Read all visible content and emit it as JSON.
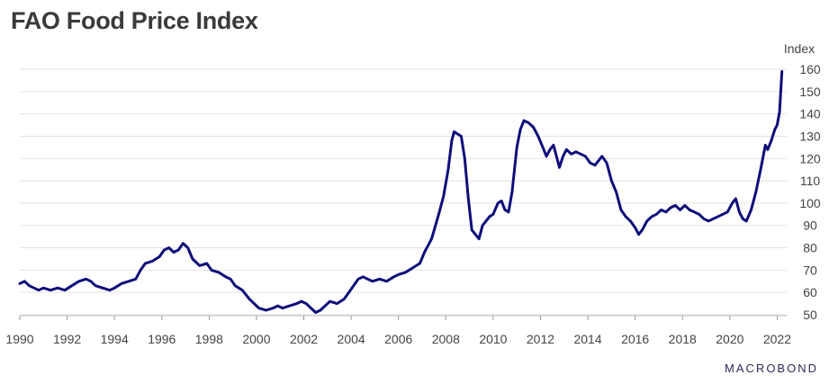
{
  "chart_data": {
    "type": "line",
    "title": "FAO Food Price Index",
    "ylabel": "Index",
    "xlabel": "",
    "xlim": [
      1990,
      2022.25
    ],
    "ylim": [
      50,
      160
    ],
    "x_ticks": [
      "1990",
      "1992",
      "1994",
      "1996",
      "1998",
      "2000",
      "2002",
      "2004",
      "2006",
      "2008",
      "2010",
      "2012",
      "2014",
      "2016",
      "2018",
      "2020",
      "2022"
    ],
    "y_ticks": [
      50,
      60,
      70,
      80,
      90,
      100,
      110,
      120,
      130,
      140,
      150,
      160
    ],
    "grid": true,
    "line_color": "#0d0d7a",
    "series": [
      {
        "values": [
          [
            1990.0,
            64
          ],
          [
            1990.2,
            65
          ],
          [
            1990.4,
            63
          ],
          [
            1990.6,
            62
          ],
          [
            1990.8,
            61
          ],
          [
            1991.0,
            62
          ],
          [
            1991.3,
            61
          ],
          [
            1991.6,
            62
          ],
          [
            1991.9,
            61
          ],
          [
            1992.2,
            63
          ],
          [
            1992.5,
            65
          ],
          [
            1992.8,
            66
          ],
          [
            1993.0,
            65
          ],
          [
            1993.2,
            63
          ],
          [
            1993.5,
            62
          ],
          [
            1993.8,
            61
          ],
          [
            1994.0,
            62
          ],
          [
            1994.3,
            64
          ],
          [
            1994.6,
            65
          ],
          [
            1994.9,
            66
          ],
          [
            1995.1,
            70
          ],
          [
            1995.3,
            73
          ],
          [
            1995.6,
            74
          ],
          [
            1995.9,
            76
          ],
          [
            1996.1,
            79
          ],
          [
            1996.3,
            80
          ],
          [
            1996.5,
            78
          ],
          [
            1996.7,
            79
          ],
          [
            1996.9,
            82
          ],
          [
            1997.1,
            80
          ],
          [
            1997.3,
            75
          ],
          [
            1997.6,
            72
          ],
          [
            1997.9,
            73
          ],
          [
            1998.1,
            70
          ],
          [
            1998.4,
            69
          ],
          [
            1998.7,
            67
          ],
          [
            1998.9,
            66
          ],
          [
            1999.1,
            63
          ],
          [
            1999.4,
            61
          ],
          [
            1999.7,
            57
          ],
          [
            1999.9,
            55
          ],
          [
            2000.1,
            53
          ],
          [
            2000.4,
            52
          ],
          [
            2000.7,
            53
          ],
          [
            2000.9,
            54
          ],
          [
            2001.1,
            53
          ],
          [
            2001.4,
            54
          ],
          [
            2001.7,
            55
          ],
          [
            2001.9,
            56
          ],
          [
            2002.1,
            55
          ],
          [
            2002.3,
            53
          ],
          [
            2002.5,
            51
          ],
          [
            2002.7,
            52
          ],
          [
            2002.9,
            54
          ],
          [
            2003.1,
            56
          ],
          [
            2003.4,
            55
          ],
          [
            2003.7,
            57
          ],
          [
            2003.9,
            60
          ],
          [
            2004.1,
            63
          ],
          [
            2004.3,
            66
          ],
          [
            2004.5,
            67
          ],
          [
            2004.7,
            66
          ],
          [
            2004.9,
            65
          ],
          [
            2005.2,
            66
          ],
          [
            2005.5,
            65
          ],
          [
            2005.8,
            67
          ],
          [
            2006.0,
            68
          ],
          [
            2006.3,
            69
          ],
          [
            2006.6,
            71
          ],
          [
            2006.9,
            73
          ],
          [
            2007.1,
            78
          ],
          [
            2007.4,
            84
          ],
          [
            2007.7,
            95
          ],
          [
            2007.9,
            103
          ],
          [
            2008.1,
            115
          ],
          [
            2008.25,
            128
          ],
          [
            2008.35,
            132
          ],
          [
            2008.5,
            131
          ],
          [
            2008.65,
            130
          ],
          [
            2008.8,
            120
          ],
          [
            2008.95,
            102
          ],
          [
            2009.1,
            88
          ],
          [
            2009.25,
            86
          ],
          [
            2009.4,
            84
          ],
          [
            2009.55,
            90
          ],
          [
            2009.7,
            92
          ],
          [
            2009.85,
            94
          ],
          [
            2010.0,
            95
          ],
          [
            2010.2,
            100
          ],
          [
            2010.35,
            101
          ],
          [
            2010.5,
            97
          ],
          [
            2010.65,
            96
          ],
          [
            2010.8,
            105
          ],
          [
            2011.0,
            125
          ],
          [
            2011.15,
            133
          ],
          [
            2011.3,
            137
          ],
          [
            2011.5,
            136
          ],
          [
            2011.7,
            134
          ],
          [
            2011.9,
            130
          ],
          [
            2012.1,
            125
          ],
          [
            2012.25,
            121
          ],
          [
            2012.4,
            124
          ],
          [
            2012.55,
            126
          ],
          [
            2012.7,
            120
          ],
          [
            2012.8,
            116
          ],
          [
            2012.95,
            121
          ],
          [
            2013.1,
            124
          ],
          [
            2013.3,
            122
          ],
          [
            2013.5,
            123
          ],
          [
            2013.7,
            122
          ],
          [
            2013.9,
            121
          ],
          [
            2014.1,
            118
          ],
          [
            2014.3,
            117
          ],
          [
            2014.45,
            119
          ],
          [
            2014.6,
            121
          ],
          [
            2014.8,
            118
          ],
          [
            2015.0,
            110
          ],
          [
            2015.2,
            105
          ],
          [
            2015.4,
            97
          ],
          [
            2015.6,
            94
          ],
          [
            2015.8,
            92
          ],
          [
            2016.0,
            89
          ],
          [
            2016.15,
            86
          ],
          [
            2016.3,
            88
          ],
          [
            2016.5,
            92
          ],
          [
            2016.7,
            94
          ],
          [
            2016.9,
            95
          ],
          [
            2017.1,
            97
          ],
          [
            2017.3,
            96
          ],
          [
            2017.5,
            98
          ],
          [
            2017.7,
            99
          ],
          [
            2017.9,
            97
          ],
          [
            2018.1,
            99
          ],
          [
            2018.3,
            97
          ],
          [
            2018.5,
            96
          ],
          [
            2018.7,
            95
          ],
          [
            2018.9,
            93
          ],
          [
            2019.1,
            92
          ],
          [
            2019.3,
            93
          ],
          [
            2019.5,
            94
          ],
          [
            2019.7,
            95
          ],
          [
            2019.9,
            96
          ],
          [
            2020.1,
            100
          ],
          [
            2020.25,
            102
          ],
          [
            2020.4,
            96
          ],
          [
            2020.55,
            93
          ],
          [
            2020.7,
            92
          ],
          [
            2020.9,
            97
          ],
          [
            2021.1,
            105
          ],
          [
            2021.3,
            115
          ],
          [
            2021.5,
            126
          ],
          [
            2021.6,
            124
          ],
          [
            2021.75,
            128
          ],
          [
            2021.9,
            133
          ],
          [
            2022.0,
            135
          ],
          [
            2022.1,
            141
          ],
          [
            2022.2,
            159
          ]
        ]
      }
    ]
  },
  "brand": {
    "logo_text": "MACROBOND"
  }
}
